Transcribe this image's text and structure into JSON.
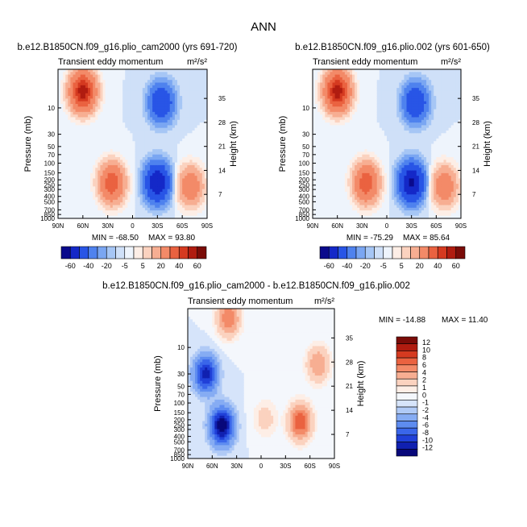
{
  "figure_title": "ANN",
  "colors": {
    "levels_main": [
      "#0a0a8c",
      "#1428c8",
      "#2855e6",
      "#4f82ee",
      "#7aa6f2",
      "#a6c6f5",
      "#cfe0f8",
      "#eef4fc",
      "#fdeee6",
      "#fbd2bf",
      "#f7ae92",
      "#f38a68",
      "#ea6240",
      "#d53a20",
      "#b01c10",
      "#7a0c08"
    ],
    "levels_diff": [
      "#08087a",
      "#1020b0",
      "#2040d8",
      "#3a66ea",
      "#5e8cf0",
      "#86acf3",
      "#b0caf6",
      "#d6e4fa",
      "#f4f7fc",
      "#fdeee6",
      "#fbd2bf",
      "#f7ae92",
      "#f38a68",
      "#ea6240",
      "#d53a20",
      "#b01c10",
      "#7a0c08"
    ]
  },
  "chart_data": [
    {
      "type": "heatmap",
      "title": "b.e12.B1850CN.f09_g16.plio_cam2000 (yrs 691-720)",
      "subtitle": "Transient eddy momentum",
      "units": "m²/s²",
      "ylabel": "Pressure (mb)",
      "y2label": "Height (km)",
      "x_ticks": [
        "90N",
        "60N",
        "30N",
        "0",
        "30S",
        "60S",
        "90S"
      ],
      "y_ticks": [
        "10",
        "30",
        "50",
        "70",
        "100",
        "150",
        "200",
        "250",
        "300",
        "400",
        "500",
        "700",
        "850",
        "1000"
      ],
      "y2_ticks": [
        "35",
        "28",
        "21",
        "14",
        "7"
      ],
      "min_label": "MIN = -68.50",
      "max_label": "MAX = 93.80",
      "colorbar_labels": [
        "-60",
        "-40",
        "-20",
        "-5",
        "5",
        "20",
        "40",
        "60"
      ],
      "features": [
        {
          "lat": 60,
          "p": 5,
          "value": 85
        },
        {
          "lat": 25,
          "p": 230,
          "value": 55
        },
        {
          "lat": -30,
          "p": 225,
          "value": -60
        },
        {
          "lat": -70,
          "p": 260,
          "value": 35
        },
        {
          "lat": -35,
          "p": 8,
          "value": -40
        }
      ]
    },
    {
      "type": "heatmap",
      "title": "b.e12.B1850CN.f09_g16.plio.002 (yrs 601-650)",
      "subtitle": "Transient eddy momentum",
      "units": "m²/s²",
      "ylabel": "Pressure (mb)",
      "y2label": "Height (km)",
      "x_ticks": [
        "90N",
        "60N",
        "30N",
        "0",
        "30S",
        "60S",
        "90S"
      ],
      "y_ticks": [
        "10",
        "30",
        "50",
        "70",
        "100",
        "150",
        "200",
        "250",
        "300",
        "400",
        "500",
        "700",
        "850",
        "1000"
      ],
      "y2_ticks": [
        "35",
        "28",
        "21",
        "14",
        "7"
      ],
      "min_label": "MIN = -75.29",
      "max_label": "MAX = 85.64",
      "colorbar_labels": [
        "-60",
        "-40",
        "-20",
        "-5",
        "5",
        "20",
        "40",
        "60"
      ],
      "features": [
        {
          "lat": 60,
          "p": 5,
          "value": 85
        },
        {
          "lat": 25,
          "p": 230,
          "value": 55
        },
        {
          "lat": -30,
          "p": 225,
          "value": -65
        },
        {
          "lat": -70,
          "p": 260,
          "value": 35
        },
        {
          "lat": -35,
          "p": 8,
          "value": -40
        }
      ]
    },
    {
      "type": "heatmap",
      "title": "b.e12.B1850CN.f09_g16.plio_cam2000 - b.e12.B1850CN.f09_g16.plio.002",
      "subtitle": "Transient eddy momentum",
      "units": "m²/s²",
      "ylabel": "Pressure (mb)",
      "y2label": "Height (km)",
      "x_ticks": [
        "90N",
        "60N",
        "30N",
        "0",
        "30S",
        "60S",
        "90S"
      ],
      "y_ticks": [
        "10",
        "30",
        "50",
        "70",
        "100",
        "150",
        "200",
        "250",
        "300",
        "400",
        "500",
        "700",
        "850",
        "1000"
      ],
      "y2_ticks": [
        "35",
        "28",
        "21",
        "14",
        "7"
      ],
      "min_label": "MIN = -14.88",
      "max_label": "MAX = 11.40",
      "colorbar_labels": [
        "12",
        "10",
        "8",
        "6",
        "4",
        "2",
        "1",
        "0",
        "-1",
        "-2",
        "-4",
        "-6",
        "-8",
        "-10",
        "-12"
      ],
      "features": [
        {
          "lat": 68,
          "p": 30,
          "value": -11
        },
        {
          "lat": 48,
          "p": 260,
          "value": -14
        },
        {
          "lat": 40,
          "p": 3,
          "value": 8
        },
        {
          "lat": -48,
          "p": 220,
          "value": 10
        },
        {
          "lat": -70,
          "p": 20,
          "value": 6
        },
        {
          "lat": -5,
          "p": 190,
          "value": 3
        }
      ]
    }
  ]
}
